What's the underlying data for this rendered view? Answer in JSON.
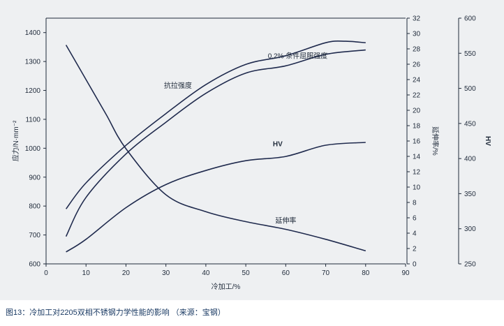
{
  "caption": "图13：冷加工对2205双相不锈钢力学性能的影响 （来源：宝钢）",
  "colors": {
    "panel": "#eef0f2",
    "axis": "#1f2a3a",
    "line": "#1f2a4d",
    "caption": "#1a3a63"
  },
  "chart_data": {
    "type": "line",
    "title": "",
    "grid": false,
    "x_axis": {
      "label": "冷加工/%",
      "range": [
        0,
        90
      ],
      "ticks": [
        0,
        10,
        20,
        30,
        40,
        50,
        60,
        70,
        80,
        90
      ]
    },
    "y_axes": {
      "stress": {
        "label": "应力/N·mm⁻²",
        "range": [
          600,
          1450
        ],
        "ticks": [
          600,
          700,
          800,
          900,
          1000,
          1100,
          1200,
          1300,
          1400
        ]
      },
      "elongation": {
        "label": "延伸率/%",
        "range": [
          0,
          32
        ],
        "ticks": [
          0,
          2,
          4,
          6,
          8,
          10,
          12,
          14,
          16,
          18,
          20,
          22,
          24,
          26,
          28,
          30,
          32
        ]
      },
      "hv": {
        "label": "HV",
        "range": [
          250,
          600
        ],
        "ticks": [
          250,
          300,
          350,
          400,
          450,
          500,
          550,
          600
        ]
      }
    },
    "series": [
      {
        "name": "抗拉强度",
        "axis": "stress",
        "x": [
          5,
          10,
          20,
          30,
          40,
          50,
          60,
          70,
          75,
          80
        ],
        "values": [
          790,
          880,
          1010,
          1120,
          1220,
          1290,
          1320,
          1365,
          1370,
          1365
        ]
      },
      {
        "name": "0.2% 条件屈服强度",
        "axis": "stress",
        "x": [
          5,
          10,
          20,
          30,
          40,
          50,
          60,
          70,
          80
        ],
        "values": [
          695,
          830,
          980,
          1090,
          1190,
          1260,
          1285,
          1325,
          1340
        ]
      },
      {
        "name": "HV",
        "axis": "hv",
        "x": [
          5,
          10,
          20,
          30,
          40,
          50,
          60,
          70,
          80
        ],
        "values": [
          267,
          285,
          330,
          363,
          383,
          397,
          403,
          419,
          423
        ]
      },
      {
        "name": "延伸率",
        "axis": "elongation",
        "x": [
          5,
          10,
          15,
          20,
          30,
          40,
          50,
          60,
          70,
          80
        ],
        "values": [
          28.5,
          24,
          19.5,
          15,
          9,
          6.8,
          5.5,
          4.5,
          3.2,
          1.7
        ]
      }
    ]
  }
}
